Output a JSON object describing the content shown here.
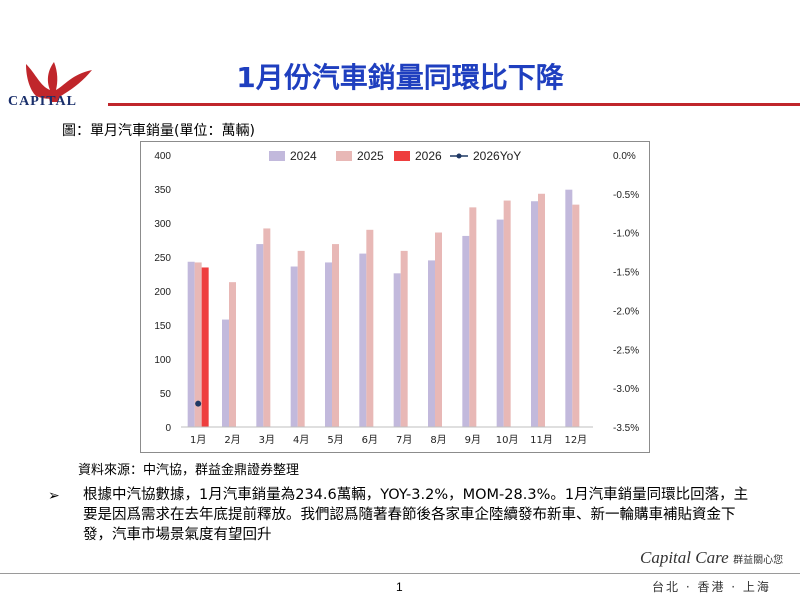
{
  "header": {
    "logo_text": "CAPITAL",
    "title": "1月份汽車銷量同環比下降"
  },
  "figure": {
    "caption": "圖：單月汽車銷量(單位：萬輛)",
    "source": "資料來源：中汽協，群益金鼎證券整理"
  },
  "bullet": {
    "marker": "➢",
    "text": "根據中汽協數據，1月汽車銷量為234.6萬輛，YOY-3.2%，MOM-28.3%。1月汽車銷量同環比回落，主要是因爲需求在去年底提前釋放。我們認爲隨著春節後各家車企陸續發布新車、新一輪購車補貼資金下發，汽車市場景氣度有望回升"
  },
  "footer": {
    "brand_script": "Capital Care",
    "brand_cn": "群益關心您",
    "cities": "台北 · 香港 · 上海",
    "page": "1"
  },
  "colors": {
    "s2024": "#c2b9dc",
    "s2025": "#e8b8b6",
    "s2026": "#ee3e3e",
    "yoy": "#1f3864",
    "title": "#1f3fbf",
    "rule": "#c0262b"
  },
  "chart_data": {
    "type": "bar",
    "categories": [
      "1月",
      "2月",
      "3月",
      "4月",
      "5月",
      "6月",
      "7月",
      "8月",
      "9月",
      "10月",
      "11月",
      "12月"
    ],
    "series": [
      {
        "name": "2024",
        "values": [
          243,
          158,
          269,
          236,
          242,
          255,
          226,
          245,
          281,
          305,
          332,
          349
        ]
      },
      {
        "name": "2025",
        "values": [
          242,
          213,
          292,
          259,
          269,
          290,
          259,
          286,
          323,
          333,
          343,
          327
        ]
      },
      {
        "name": "2026",
        "values": [
          234.6,
          null,
          null,
          null,
          null,
          null,
          null,
          null,
          null,
          null,
          null,
          null
        ]
      }
    ],
    "line_series": {
      "name": "2026YoY",
      "axis": "right",
      "values": [
        -3.2,
        null,
        null,
        null,
        null,
        null,
        null,
        null,
        null,
        null,
        null,
        null
      ]
    },
    "ylim": [
      0,
      400
    ],
    "y_ticks": [
      "0",
      "50",
      "100",
      "150",
      "200",
      "250",
      "300",
      "350",
      "400"
    ],
    "y2lim": [
      -3.5,
      0
    ],
    "y2_ticks": [
      "-3.5%",
      "-3.0%",
      "-2.5%",
      "-2.0%",
      "-1.5%",
      "-1.0%",
      "-0.5%",
      "0.0%"
    ],
    "legend_position": "top",
    "grid": false,
    "title": "",
    "xlabel": "",
    "ylabel": ""
  }
}
